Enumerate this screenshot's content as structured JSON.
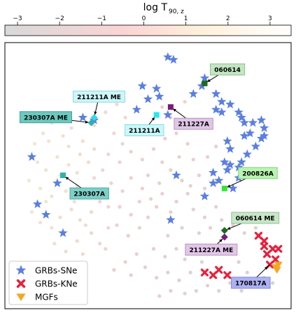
{
  "chart_data": {
    "type": "scatter",
    "title": "",
    "colorbar": {
      "label": "log T",
      "label_sub": "90, z",
      "ticks": [
        -3,
        -2,
        -1,
        0,
        1,
        2,
        3
      ],
      "tick_labels": [
        "−3",
        "−2",
        "−1",
        "0",
        "1",
        "2",
        "3"
      ],
      "range": [
        -3.3,
        3.5
      ],
      "colors": [
        "#d8d8d8",
        "#fbd0d0",
        "#fff7d8",
        "#ffffff"
      ]
    },
    "xlim": [
      0,
      100
    ],
    "ylim": [
      0,
      100
    ],
    "axes_ticks_visible": false,
    "grid": false,
    "legend_position": "lower-left",
    "series": [
      {
        "name": "GRBs-SNe",
        "marker": "star",
        "color": "#5b7fe0",
        "points": [
          [
            57.0,
            95.0
          ],
          [
            59.0,
            94.0
          ],
          [
            48.0,
            84.0
          ],
          [
            53.0,
            83.0
          ],
          [
            66.0,
            81.0
          ],
          [
            69.0,
            84.0
          ],
          [
            74.0,
            81.0
          ],
          [
            70.0,
            87.0
          ],
          [
            50.0,
            79.0
          ],
          [
            54.0,
            80.0
          ],
          [
            46.0,
            75.0
          ],
          [
            57.0,
            73.0
          ],
          [
            27.0,
            72.0
          ],
          [
            31.0,
            71.0
          ],
          [
            74.0,
            75.0
          ],
          [
            76.0,
            78.0
          ],
          [
            76.0,
            74.0
          ],
          [
            79.0,
            77.0
          ],
          [
            82.0,
            74.0
          ],
          [
            83.0,
            72.0
          ],
          [
            90.0,
            71.0
          ],
          [
            84.0,
            70.0
          ],
          [
            86.0,
            66.0
          ],
          [
            91.0,
            68.0
          ],
          [
            90.0,
            64.0
          ],
          [
            84.0,
            65.0
          ],
          [
            88.0,
            61.0
          ],
          [
            78.0,
            63.0
          ],
          [
            79.0,
            60.0
          ],
          [
            85.0,
            58.0
          ],
          [
            83.0,
            55.0
          ],
          [
            82.0,
            53.0
          ],
          [
            77.0,
            55.0
          ],
          [
            79.0,
            54.0
          ],
          [
            78.0,
            52.0
          ],
          [
            73.0,
            51.0
          ],
          [
            75.0,
            48.0
          ],
          [
            80.0,
            45.0
          ],
          [
            70.0,
            42.0
          ],
          [
            73.0,
            47.0
          ],
          [
            91.0,
            65.0
          ],
          [
            18.0,
            47.0
          ],
          [
            9.0,
            57.0
          ],
          [
            11.0,
            39.0
          ],
          [
            14.0,
            35.0
          ],
          [
            60.0,
            50.0
          ],
          [
            20.0,
            28.0
          ],
          [
            58.0,
            33.0
          ],
          [
            82.0,
            49.0
          ],
          [
            87.0,
            70.0
          ]
        ]
      },
      {
        "name": "GRBs-KNe",
        "marker": "x",
        "color": "#e8203c",
        "points": [
          [
            89.0,
            27.0
          ],
          [
            91.0,
            25.0
          ],
          [
            91.0,
            23.0
          ],
          [
            94.0,
            22.0
          ],
          [
            96.0,
            22.0
          ],
          [
            92.0,
            20.0
          ],
          [
            95.0,
            18.0
          ],
          [
            75.0,
            14.0
          ],
          [
            70.0,
            13.0
          ],
          [
            73.0,
            12.0
          ],
          [
            78.0,
            12.0
          ],
          [
            93.0,
            16.0
          ]
        ]
      },
      {
        "name": "MGFs",
        "marker": "triangle",
        "color": "#f5a623",
        "points": [
          [
            95.0,
            15.0
          ],
          [
            96.0,
            16.0
          ],
          [
            95.5,
            14.0
          ]
        ]
      }
    ],
    "background_points": {
      "color_scale": "log T90,z",
      "points": [
        [
          10,
          62,
          1.5
        ],
        [
          13,
          66,
          1.2
        ],
        [
          16,
          70,
          1.0
        ],
        [
          15,
          63,
          1.3
        ],
        [
          20,
          65,
          1.1
        ],
        [
          23,
          68,
          0.9
        ],
        [
          22,
          61,
          1.0
        ],
        [
          27,
          63,
          0.8
        ],
        [
          11,
          55,
          1.4
        ],
        [
          14,
          52,
          1.2
        ],
        [
          18,
          57,
          1.1
        ],
        [
          22,
          54,
          1.0
        ],
        [
          26,
          58,
          0.7
        ],
        [
          25,
          51,
          0.9
        ],
        [
          29,
          55,
          0.6
        ],
        [
          31,
          60,
          0.5
        ],
        [
          8,
          48,
          1.6
        ],
        [
          12,
          45,
          1.3
        ],
        [
          16,
          42,
          1.2
        ],
        [
          21,
          44,
          1.0
        ],
        [
          25,
          46,
          0.8
        ],
        [
          28,
          43,
          0.6
        ],
        [
          31,
          49,
          0.4
        ],
        [
          34,
          52,
          0.3
        ],
        [
          9,
          36,
          1.5
        ],
        [
          12,
          32,
          1.2
        ],
        [
          16,
          30,
          1.0
        ],
        [
          19,
          34,
          0.9
        ],
        [
          23,
          37,
          0.7
        ],
        [
          26,
          33,
          0.5
        ],
        [
          30,
          36,
          0.3
        ],
        [
          33,
          40,
          0.2
        ],
        [
          17,
          24,
          0.8
        ],
        [
          21,
          21,
          0.6
        ],
        [
          25,
          25,
          0.4
        ],
        [
          27,
          20,
          0.3
        ],
        [
          30,
          28,
          0.2
        ],
        [
          33,
          24,
          0.1
        ],
        [
          36,
          30,
          0.0
        ],
        [
          35,
          22,
          -0.1
        ],
        [
          38,
          66,
          0.2
        ],
        [
          41,
          62,
          0.0
        ],
        [
          36,
          58,
          0.1
        ],
        [
          40,
          55,
          -0.1
        ],
        [
          44,
          59,
          -0.2
        ],
        [
          37,
          47,
          0.0
        ],
        [
          41,
          44,
          -0.2
        ],
        [
          44,
          49,
          -0.3
        ],
        [
          40,
          38,
          -0.3
        ],
        [
          44,
          35,
          -0.5
        ],
        [
          47,
          40,
          -0.6
        ],
        [
          39,
          31,
          -0.4
        ],
        [
          43,
          27,
          -0.6
        ],
        [
          47,
          30,
          -0.7
        ],
        [
          50,
          34,
          -0.8
        ],
        [
          53,
          38,
          -0.9
        ],
        [
          48,
          56,
          -0.4
        ],
        [
          52,
          60,
          -0.6
        ],
        [
          55,
          55,
          -0.8
        ],
        [
          50,
          50,
          -0.7
        ],
        [
          54,
          47,
          -0.9
        ],
        [
          58,
          52,
          -1.0
        ],
        [
          61,
          57,
          -1.1
        ],
        [
          62,
          48,
          -1.2
        ],
        [
          56,
          64,
          -0.5
        ],
        [
          60,
          66,
          -0.6
        ],
        [
          64,
          62,
          -0.8
        ],
        [
          66,
          56,
          -1.0
        ],
        [
          68,
          50,
          -1.2
        ],
        [
          70,
          45,
          -1.3
        ],
        [
          64,
          43,
          -1.3
        ],
        [
          60,
          40,
          -1.2
        ],
        [
          66,
          37,
          -1.4
        ],
        [
          70,
          34,
          -1.6
        ],
        [
          74,
          38,
          -1.5
        ],
        [
          72,
          30,
          -1.7
        ],
        [
          76,
          33,
          -1.8
        ],
        [
          68,
          28,
          -1.7
        ],
        [
          62,
          30,
          -1.5
        ],
        [
          57,
          27,
          -1.3
        ],
        [
          52,
          22,
          -1.1
        ],
        [
          56,
          19,
          -1.3
        ],
        [
          60,
          22,
          -1.5
        ],
        [
          63,
          18,
          -1.6
        ],
        [
          67,
          21,
          -1.8
        ],
        [
          46,
          20,
          -0.9
        ],
        [
          42,
          17,
          -0.8
        ],
        [
          38,
          14,
          -0.6
        ],
        [
          44,
          12,
          -0.9
        ],
        [
          49,
          15,
          -1.1
        ],
        [
          53,
          11,
          -1.3
        ],
        [
          57,
          13,
          -1.5
        ],
        [
          61,
          10,
          -1.7
        ],
        [
          65,
          13,
          -1.8
        ],
        [
          69,
          17,
          -1.9
        ],
        [
          73,
          22,
          -2.0
        ],
        [
          77,
          26,
          -2.1
        ],
        [
          80,
          22,
          -2.2
        ],
        [
          82,
          17,
          -2.3
        ],
        [
          85,
          13,
          -2.4
        ],
        [
          79,
          9,
          -2.3
        ],
        [
          83,
          6,
          -2.5
        ],
        [
          87,
          9,
          -2.6
        ],
        [
          75,
          6,
          -2.2
        ],
        [
          71,
          8,
          -2.1
        ],
        [
          67,
          6,
          -2.0
        ],
        [
          63,
          5,
          -1.9
        ],
        [
          58,
          6,
          -1.7
        ],
        [
          54,
          4,
          -1.5
        ],
        [
          91,
          11,
          -2.7
        ],
        [
          94,
          9,
          -2.8
        ],
        [
          88,
          30,
          -2.0
        ],
        [
          84,
          28,
          -2.2
        ],
        [
          80,
          31,
          -2.0
        ],
        [
          55,
          76,
          -0.3
        ],
        [
          58,
          72,
          -0.4
        ],
        [
          63,
          78,
          -0.2
        ],
        [
          60,
          70,
          -0.5
        ],
        [
          35,
          74,
          0.4
        ],
        [
          39,
          77,
          0.5
        ],
        [
          42,
          72,
          0.3
        ],
        [
          31,
          69,
          0.6
        ],
        [
          19,
          50,
          1.0
        ],
        [
          14,
          40,
          1.3
        ],
        [
          24,
          40,
          0.8
        ],
        [
          28,
          31,
          0.5
        ],
        [
          32,
          44,
          0.4
        ],
        [
          36,
          38,
          0.1
        ],
        [
          48,
          45,
          -0.5
        ],
        [
          51,
          41,
          -0.7
        ],
        [
          55,
          43,
          -0.8
        ],
        [
          58,
          36,
          -1.0
        ],
        [
          65,
          46,
          -1.1
        ],
        [
          71,
          57,
          -1.1
        ],
        [
          74,
          61,
          -1.3
        ],
        [
          69,
          70,
          -1.0
        ]
      ]
    },
    "annotations": [
      {
        "label": "060614",
        "marker": "square",
        "color": "#1b6b1b",
        "point": [
          70.0,
          85.0
        ],
        "box_color": "#c2e6c2",
        "box_edge": "#8fbf8f"
      },
      {
        "label": "211211A ME",
        "marker": "diamond",
        "color": "#29e0e8",
        "point": [
          31.0,
          72.0
        ],
        "box_color": "#cdf6f8",
        "box_edge": "#8fd8dc"
      },
      {
        "label": "230307A ME",
        "marker": "diamond",
        "color": "#2fb3a8",
        "point": [
          30.0,
          70.0
        ],
        "box_color": "#6bc9bf",
        "box_edge": "#3f9f96"
      },
      {
        "label": "211211A",
        "marker": "square",
        "color": "#25e8f0",
        "point": [
          53.0,
          73.0
        ],
        "box_color": "#c8f8fb",
        "box_edge": "#8fd8dc"
      },
      {
        "label": "211227A",
        "marker": "square",
        "color": "#7a1a7a",
        "point": [
          58.0,
          76.0
        ],
        "box_color": "#e0c6e6",
        "box_edge": "#b794bf"
      },
      {
        "label": "230307A",
        "marker": "square",
        "color": "#2fb3a8",
        "point": [
          20.0,
          50.0
        ],
        "box_color": "#7dd0c7",
        "box_edge": "#4fa79e"
      },
      {
        "label": "200826A",
        "marker": "square",
        "color": "#33e633",
        "point": [
          77.0,
          45.0
        ],
        "box_color": "#b8f5b0",
        "box_edge": "#86cf7e"
      },
      {
        "label": "060614 ME",
        "marker": "diamond",
        "color": "#1b6b1b",
        "point": [
          77.0,
          29.0
        ],
        "box_color": "#c7e6c7",
        "box_edge": "#95bf95"
      },
      {
        "label": "211227A ME",
        "marker": "diamond",
        "color": "#7a1a7a",
        "point": [
          77.0,
          26.5
        ],
        "box_color": "#e2c6e8",
        "box_edge": "#b794bf"
      },
      {
        "label": "170817A",
        "marker": "none",
        "color": "#f5a623",
        "point": [
          93.0,
          16.0
        ],
        "box_color": "#aeb2f2",
        "box_edge": "#7f84d6"
      }
    ]
  }
}
